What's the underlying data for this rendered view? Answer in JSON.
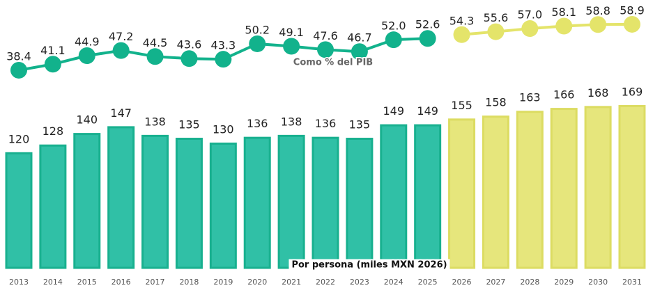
{
  "chart_data": {
    "type": "bar",
    "categories": [
      "2013",
      "2014",
      "2015",
      "2016",
      "2017",
      "2018",
      "2019",
      "2020",
      "2021",
      "2022",
      "2023",
      "2024",
      "2025",
      "2026",
      "2027",
      "2028",
      "2029",
      "2030",
      "2031"
    ],
    "ylim": [
      0,
      200
    ],
    "y2lim": [
      30,
      60
    ],
    "series": [
      {
        "name": "Por persona (miles MXN 2026)",
        "type": "bar",
        "color": "#30c0a6",
        "stroke": "#18b08f",
        "values": [
          120,
          128,
          140,
          147,
          138,
          135,
          130,
          136,
          138,
          136,
          135,
          149,
          149,
          null,
          null,
          null,
          null,
          null,
          null
        ]
      },
      {
        "type": "bar",
        "color": "#e6e67c",
        "stroke": "#dcdc62",
        "values": [
          null,
          null,
          null,
          null,
          null,
          null,
          null,
          null,
          null,
          null,
          null,
          null,
          null,
          155,
          158,
          163,
          166,
          168,
          169
        ]
      },
      {
        "name": "Como % del PIB",
        "type": "line",
        "axis": "y2",
        "color": "#12b28c",
        "values": [
          38.4,
          41.1,
          44.9,
          47.2,
          44.5,
          43.6,
          43.3,
          50.2,
          49.1,
          47.6,
          46.7,
          52.0,
          52.6,
          null,
          null,
          null,
          null,
          null,
          null
        ],
        "value_labels": [
          "38.4",
          "41.1",
          "44.9",
          "47.2",
          "44.5",
          "43.6",
          "43.3",
          "50.2",
          "49.1",
          "47.6",
          "46.7",
          "52.0",
          "52.6",
          null,
          null,
          null,
          null,
          null,
          null
        ]
      },
      {
        "type": "line",
        "axis": "y2",
        "color": "#e4e46a",
        "values": [
          null,
          null,
          null,
          null,
          null,
          null,
          null,
          null,
          null,
          null,
          null,
          null,
          null,
          54.3,
          55.6,
          57.0,
          58.1,
          58.8,
          58.9
        ],
        "value_labels": [
          null,
          null,
          null,
          null,
          null,
          null,
          null,
          null,
          null,
          null,
          null,
          null,
          null,
          "54.3",
          "55.6",
          "57.0",
          "58.1",
          "58.8",
          "58.9"
        ]
      }
    ]
  }
}
